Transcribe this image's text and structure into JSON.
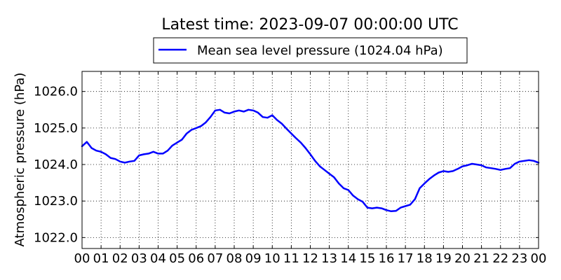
{
  "chart_data": {
    "type": "line",
    "title": "Latest time: 2023-09-07 00:00:00 UTC",
    "ylabel": "Atmospheric pressure (hPa)",
    "xlabel": "",
    "ylim": [
      1021.7,
      1026.55
    ],
    "xlim": [
      0,
      24
    ],
    "grid": true,
    "grid_style": "dotted",
    "legend_position": "top-center",
    "x_tick_labels": [
      "00",
      "01",
      "02",
      "03",
      "04",
      "05",
      "06",
      "07",
      "08",
      "09",
      "10",
      "11",
      "12",
      "13",
      "14",
      "15",
      "16",
      "17",
      "18",
      "19",
      "20",
      "21",
      "22",
      "23",
      "00"
    ],
    "y_tick_labels": [
      "1022.0",
      "1023.0",
      "1024.0",
      "1025.0",
      "1026.0"
    ],
    "y_tick_values": [
      1022.0,
      1023.0,
      1024.0,
      1025.0,
      1026.0
    ],
    "series": [
      {
        "name": "Mean sea level pressure (1024.04 hPa)",
        "color": "#0000ff",
        "x": [
          0,
          0.25,
          0.5,
          0.75,
          1,
          1.25,
          1.5,
          1.75,
          2,
          2.25,
          2.5,
          2.75,
          3,
          3.25,
          3.5,
          3.75,
          4,
          4.25,
          4.5,
          4.75,
          5,
          5.25,
          5.5,
          5.75,
          6,
          6.25,
          6.5,
          6.75,
          7,
          7.25,
          7.5,
          7.75,
          8,
          8.25,
          8.5,
          8.75,
          9,
          9.25,
          9.5,
          9.75,
          10,
          10.25,
          10.5,
          10.75,
          11,
          11.25,
          11.5,
          11.75,
          12,
          12.25,
          12.5,
          12.75,
          13,
          13.25,
          13.5,
          13.75,
          14,
          14.25,
          14.5,
          14.75,
          15,
          15.25,
          15.5,
          15.75,
          16,
          16.25,
          16.5,
          16.75,
          17,
          17.25,
          17.5,
          17.75,
          18,
          18.25,
          18.5,
          18.75,
          19,
          19.25,
          19.5,
          19.75,
          20,
          20.25,
          20.5,
          20.75,
          21,
          21.25,
          21.5,
          21.75,
          22,
          22.25,
          22.5,
          22.75,
          23,
          23.25,
          23.5,
          23.75,
          24
        ],
        "values": [
          1024.5,
          1024.62,
          1024.45,
          1024.38,
          1024.35,
          1024.28,
          1024.18,
          1024.15,
          1024.08,
          1024.05,
          1024.08,
          1024.1,
          1024.25,
          1024.28,
          1024.3,
          1024.35,
          1024.3,
          1024.3,
          1024.38,
          1024.52,
          1024.6,
          1024.68,
          1024.85,
          1024.95,
          1025.0,
          1025.05,
          1025.15,
          1025.3,
          1025.48,
          1025.5,
          1025.42,
          1025.4,
          1025.45,
          1025.48,
          1025.45,
          1025.5,
          1025.48,
          1025.42,
          1025.3,
          1025.28,
          1025.35,
          1025.22,
          1025.12,
          1024.98,
          1024.85,
          1024.72,
          1024.6,
          1024.45,
          1024.28,
          1024.1,
          1023.95,
          1023.85,
          1023.75,
          1023.65,
          1023.48,
          1023.35,
          1023.3,
          1023.15,
          1023.05,
          1022.98,
          1022.82,
          1022.8,
          1022.82,
          1022.8,
          1022.75,
          1022.72,
          1022.73,
          1022.82,
          1022.86,
          1022.9,
          1023.05,
          1023.35,
          1023.48,
          1023.6,
          1023.7,
          1023.78,
          1023.82,
          1023.8,
          1023.82,
          1023.88,
          1023.95,
          1023.98,
          1024.02,
          1024.0,
          1023.98,
          1023.92,
          1023.9,
          1023.88,
          1023.85,
          1023.88,
          1023.9,
          1024.02,
          1024.08,
          1024.1,
          1024.12,
          1024.1,
          1024.05
        ]
      }
    ]
  }
}
